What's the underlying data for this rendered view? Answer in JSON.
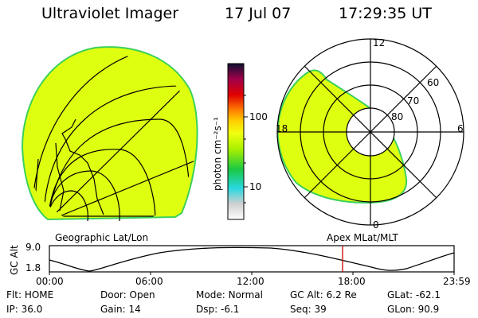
{
  "header": {
    "instrument": "Ultraviolet Imager",
    "date": "17 Jul 07",
    "time": "17:29:35 UT"
  },
  "colorbar": {
    "unit_label": "photon cm⁻²s⁻¹",
    "ticks": [
      "100",
      "10"
    ]
  },
  "left_panel": {
    "caption": "Geographic Lat/Lon"
  },
  "right_panel": {
    "caption": "Apex  MLat/MLT",
    "mlt_labels": {
      "top": "12",
      "left": "18",
      "right": "6",
      "bottom": "0"
    },
    "lat_labels": [
      "60",
      "70",
      "80"
    ]
  },
  "altitude_plot": {
    "ylabel": "GC Alt",
    "yticks": [
      "9.0",
      "1.8"
    ],
    "xticks": [
      "00:00",
      "06:00",
      "12:00",
      "18:00",
      "23:59"
    ],
    "marker_time": "17:29"
  },
  "status": {
    "flt_label": "Flt:",
    "flt_value": "HOME",
    "ip_label": "IP:",
    "ip_value": "36.0",
    "door_label": "Door:",
    "door_value": "Open",
    "gain_label": "Gain:",
    "gain_value": "14",
    "mode_label": "Mode:",
    "mode_value": "Normal",
    "dsp_label": "Dsp:",
    "dsp_value": "-6.1",
    "gcalt_label": "GC Alt:",
    "gcalt_value": "6.2 Re",
    "seq_label": "Seq:",
    "seq_value": "39",
    "glat_label": "GLat:",
    "glat_value": "-62.1",
    "glon_label": "GLon:",
    "glon_value": "90.9"
  },
  "colors": {
    "fill": "#dfff10",
    "edge": "#3cd05a",
    "marker": "#cc0000"
  }
}
